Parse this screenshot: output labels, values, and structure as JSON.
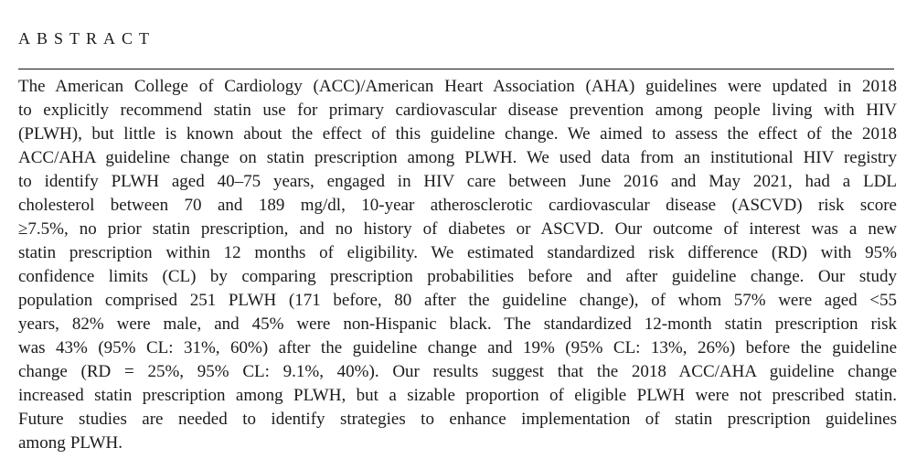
{
  "abstract": {
    "heading": "ABSTRACT",
    "lines": [
      "The American College of Cardiology (ACC)/American Heart Association (AHA) guidelines were updated in 2018",
      "to explicitly recommend statin use for primary cardiovascular disease prevention among people living with HIV",
      "(PLWH), but little is known about the effect of this guideline change. We aimed to assess the effect of the 2018",
      "ACC/AHA guideline change on statin prescription among PLWH. We used data from an institutional HIV registry",
      "to identify PLWH aged 40–75 years, engaged in HIV care between June 2016 and May 2021, had a LDL",
      "cholesterol between 70 and 189 mg/dl, 10-year atherosclerotic cardiovascular disease (ASCVD) risk score",
      "≥7.5%, no prior statin prescription, and no history of diabetes or ASCVD. Our outcome of interest was a new",
      "statin prescription within 12 months of eligibility. We estimated standardized risk difference (RD) with 95%",
      "confidence limits (CL) by comparing prescription probabilities before and after guideline change. Our study",
      "population comprised 251 PLWH (171 before, 80 after the guideline change), of whom 57% were aged <55",
      "years, 82% were male, and 45% were non-Hispanic black. The standardized 12-month statin prescription risk",
      "was 43% (95% CL: 31%, 60%) after the guideline change and 19% (95% CL: 13%, 26%) before the guideline",
      "change (RD = 25%, 95% CL: 9.1%, 40%). Our results suggest that the 2018 ACC/AHA guideline change",
      "increased statin prescription among PLWH, but a sizable proportion of eligible PLWH were not prescribed statin.",
      "Future studies are needed to identify strategies to enhance implementation of statin prescription guidelines",
      "among PLWH."
    ]
  },
  "colors": {
    "background": "#ffffff",
    "text": "#1b1b1d",
    "rule": "#161616"
  }
}
